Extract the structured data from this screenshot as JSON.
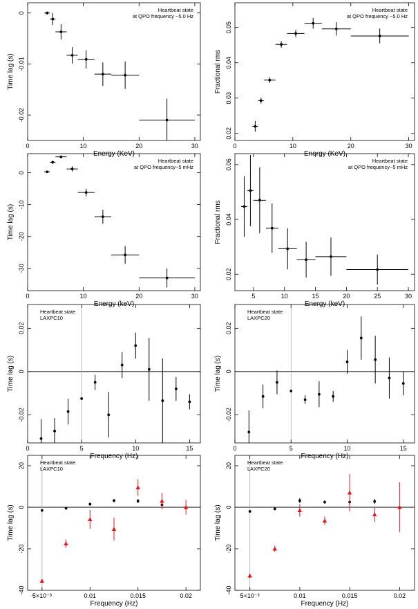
{
  "chart_data": [
    {
      "type": "scatter",
      "title": "",
      "annotation": [
        "Heartbeat state",
        "at QPO frequency ~5.0  Hz"
      ],
      "xlabel": "Energy (KeV)",
      "ylabel": "Time lag (s)",
      "xlim": [
        0,
        31
      ],
      "ylim": [
        -0.025,
        0.002
      ],
      "xticks": [
        0,
        10,
        20,
        30
      ],
      "xticklabels": [
        "0",
        "10",
        "20",
        "30"
      ],
      "yticks": [
        0,
        -0.01,
        -0.02
      ],
      "yticklabels": [
        "0",
        "-0.01",
        "-0.02"
      ],
      "series": [
        {
          "name": "lag",
          "color": "#000000",
          "marker": "dot",
          "x": [
            3.5,
            4.5,
            6.0,
            8.0,
            10.5,
            13.5,
            17.5,
            25.0
          ],
          "y": [
            0.0,
            -0.0012,
            -0.0037,
            -0.0083,
            -0.0091,
            -0.012,
            -0.0122,
            -0.021
          ],
          "xerr": [
            0.5,
            0.5,
            1.0,
            1.0,
            1.5,
            1.5,
            2.5,
            5.0
          ],
          "yerr": [
            0.0003,
            0.0012,
            0.0015,
            0.0016,
            0.0018,
            0.0023,
            0.0027,
            0.0042
          ]
        }
      ]
    },
    {
      "type": "scatter",
      "title": "",
      "annotation": [
        "Heartbeat state",
        "at QPO frequency ~5.0 Hz"
      ],
      "xlabel": "Energy (KeV)",
      "ylabel": "Fractional rms",
      "xlim": [
        0,
        31
      ],
      "ylim": [
        0.018,
        0.057
      ],
      "xticks": [
        0,
        10,
        20,
        30
      ],
      "xticklabels": [
        "0",
        "10",
        "20",
        "30"
      ],
      "yticks": [
        0.02,
        0.03,
        0.04,
        0.05
      ],
      "yticklabels": [
        "0.02",
        "0.03",
        "0.04",
        "0.05"
      ],
      "series": [
        {
          "name": "rms",
          "color": "#000000",
          "marker": "dot",
          "x": [
            3.5,
            4.5,
            6.0,
            8.0,
            10.5,
            13.5,
            17.5,
            25.0
          ],
          "y": [
            0.022,
            0.0293,
            0.0351,
            0.0452,
            0.0483,
            0.0512,
            0.0496,
            0.0476
          ],
          "xerr": [
            0.5,
            0.5,
            1.0,
            1.0,
            1.5,
            1.5,
            2.5,
            5.0
          ],
          "yerr": [
            0.0015,
            0.0008,
            0.0008,
            0.0009,
            0.001,
            0.0015,
            0.0019,
            0.0021
          ]
        }
      ]
    },
    {
      "type": "scatter",
      "title": "",
      "annotation": [
        "Heartbeat state",
        "at QPO frequency~5 mHz"
      ],
      "xlabel": "Energy (keV)",
      "ylabel": "Time lag (s)",
      "xlim": [
        0,
        31
      ],
      "ylim": [
        -37,
        6
      ],
      "xticks": [
        0,
        10,
        20,
        30
      ],
      "xticklabels": [
        "0",
        "10",
        "20",
        "30"
      ],
      "yticks": [
        0,
        -10,
        -20,
        -30
      ],
      "yticklabels": [
        "0",
        "-10",
        "-20",
        "-30"
      ],
      "series": [
        {
          "name": "lag",
          "color": "#000000",
          "marker": "dot",
          "x": [
            3.5,
            4.5,
            6.0,
            8.0,
            10.5,
            13.5,
            17.5,
            25.0
          ],
          "y": [
            0.3,
            3.3,
            5.0,
            1.2,
            -6.2,
            -13.8,
            -25.8,
            -33.0
          ],
          "xerr": [
            0.5,
            0.5,
            1.0,
            1.0,
            1.5,
            1.5,
            2.5,
            5.0
          ],
          "yerr": [
            0.3,
            0.5,
            0.3,
            0.8,
            1.2,
            2.2,
            2.8,
            3.0
          ]
        }
      ]
    },
    {
      "type": "scatter",
      "title": "",
      "annotation": [
        "Heartbeat state",
        "at QPO frequency~5 mHz"
      ],
      "xlabel": "Energy (keV)",
      "ylabel": "Fractional rms",
      "xlim": [
        2,
        31
      ],
      "ylim": [
        0.014,
        0.064
      ],
      "xticks": [
        5,
        10,
        15,
        20,
        25,
        30
      ],
      "xticklabels": [
        "5",
        "10",
        "15",
        "20",
        "25",
        "30"
      ],
      "yticks": [
        0.02,
        0.04,
        0.06
      ],
      "yticklabels": [
        "0.02",
        "0.04",
        "0.06"
      ],
      "series": [
        {
          "name": "rms",
          "color": "#000000",
          "marker": "dot",
          "x": [
            3.5,
            4.5,
            6.0,
            8.0,
            10.5,
            13.5,
            17.5,
            25.0
          ],
          "y": [
            0.0447,
            0.0505,
            0.047,
            0.0368,
            0.0293,
            0.0253,
            0.0264,
            0.0217
          ],
          "xerr": [
            0.5,
            0.5,
            1.0,
            1.0,
            1.5,
            1.5,
            2.5,
            5.0
          ],
          "yerr": [
            0.011,
            0.013,
            0.012,
            0.009,
            0.0075,
            0.0065,
            0.007,
            0.0055
          ]
        }
      ]
    },
    {
      "type": "scatter",
      "title": "",
      "annotation": [
        "Heartbeat state",
        "LAXPC10"
      ],
      "xlabel": "Frequency (Hz)",
      "ylabel": "Time lag (s)",
      "xlim": [
        0,
        16
      ],
      "ylim": [
        -0.033,
        0.031
      ],
      "xticks": [
        0,
        5,
        10,
        15
      ],
      "xticklabels": [
        "0",
        "5",
        "10",
        "15"
      ],
      "yticks": [
        0.02,
        0,
        -0.02
      ],
      "yticklabels": [
        "0.02",
        "0",
        "-0.02"
      ],
      "zero_line": true,
      "vline_x": 5,
      "series": [
        {
          "name": "lag",
          "color": "#000000",
          "marker": "dot",
          "x": [
            1.25,
            2.5,
            3.75,
            5.0,
            6.25,
            7.5,
            8.75,
            10.0,
            11.25,
            12.5,
            13.75,
            15.0
          ],
          "y": [
            -0.031,
            -0.0275,
            -0.0185,
            -0.0125,
            -0.005,
            -0.02,
            0.003,
            0.012,
            0.001,
            -0.0135,
            -0.008,
            -0.014
          ],
          "xerr": [
            0,
            0,
            0,
            0,
            0,
            0,
            0,
            0,
            0,
            0,
            0,
            0
          ],
          "yerr": [
            0.009,
            0.006,
            0.006,
            0.0004,
            0.0035,
            0.0105,
            0.006,
            0.006,
            0.0145,
            0.0195,
            0.0055,
            0.0035
          ]
        }
      ]
    },
    {
      "type": "scatter",
      "title": "",
      "annotation": [
        "Heartbeat state",
        "LAXPC20"
      ],
      "xlabel": "Frequency (Hz)",
      "ylabel": "Time lag (s)",
      "xlim": [
        0,
        16
      ],
      "ylim": [
        -0.033,
        0.031
      ],
      "xticks": [
        0,
        5,
        10,
        15
      ],
      "xticklabels": [
        "0",
        "5",
        "10",
        "15"
      ],
      "yticks": [
        0.02,
        0,
        -0.02
      ],
      "yticklabels": [
        "0.02",
        "0",
        "-0.02"
      ],
      "zero_line": true,
      "vline_x": 5,
      "series": [
        {
          "name": "lag",
          "color": "#000000",
          "marker": "dot",
          "x": [
            1.25,
            2.5,
            3.75,
            5.0,
            6.25,
            7.5,
            8.75,
            10.0,
            11.25,
            12.5,
            13.75,
            15.0
          ],
          "y": [
            -0.028,
            -0.0115,
            -0.005,
            -0.009,
            -0.013,
            -0.0105,
            -0.0115,
            0.0045,
            0.0155,
            0.0055,
            -0.003,
            -0.0055
          ],
          "xerr": [
            0,
            0,
            0,
            0,
            0,
            0,
            0,
            0,
            0,
            0,
            0,
            0
          ],
          "yerr": [
            0.01,
            0.0055,
            0.0055,
            0.0004,
            0.002,
            0.006,
            0.0025,
            0.0055,
            0.01,
            0.011,
            0.0095,
            0.0055
          ]
        }
      ]
    },
    {
      "type": "scatter",
      "title": "",
      "annotation": [
        "Heartbeat state",
        "LAXPC10"
      ],
      "xlabel": "Frequency (Hz)",
      "ylabel": "Time lag (s)",
      "xlim": [
        0.0035,
        0.0215
      ],
      "ylim": [
        -40,
        25
      ],
      "xticks": [
        0.005,
        0.01,
        0.015,
        0.02
      ],
      "xticklabels": [
        "5×10⁻³",
        "0.01",
        "0.015",
        "0.02"
      ],
      "yticks": [
        20,
        0,
        -20,
        -40
      ],
      "yticklabels": [
        "20",
        "0",
        "-20",
        "-40"
      ],
      "zero_line": true,
      "vline_x": 0.005,
      "series": [
        {
          "name": "black",
          "color": "#000000",
          "marker": "dot",
          "x": [
            0.005,
            0.0075,
            0.01,
            0.0125,
            0.015,
            0.0175
          ],
          "y": [
            -1.5,
            -0.5,
            1.5,
            3.2,
            3.0,
            1.2
          ],
          "xerr": [
            0,
            0,
            0,
            0,
            0,
            0
          ],
          "yerr": [
            0.6,
            0.6,
            0.8,
            0.8,
            1.0,
            1.0
          ]
        },
        {
          "name": "red",
          "color": "#e8141b",
          "marker": "triangle",
          "x": [
            0.005,
            0.0075,
            0.01,
            0.0125,
            0.015,
            0.0175,
            0.02
          ],
          "y": [
            -35.5,
            -17.5,
            -5.8,
            -10.5,
            9.5,
            3.0,
            0.0
          ],
          "xerr": [
            0,
            0,
            0,
            0,
            0,
            0,
            0
          ],
          "yerr": [
            1.0,
            2.0,
            4.5,
            5.5,
            4.0,
            4.0,
            3.5
          ]
        }
      ]
    },
    {
      "type": "scatter",
      "title": "",
      "annotation": [
        "Heartbeat state",
        "LAXPC20"
      ],
      "xlabel": "Frequency (Hz)",
      "ylabel": "Time lag (s)",
      "xlim": [
        0.0035,
        0.0215
      ],
      "ylim": [
        -40,
        25
      ],
      "xticks": [
        0.005,
        0.01,
        0.015,
        0.02
      ],
      "xticklabels": [
        "5×10⁻³",
        "0.01",
        "0.015",
        "0.02"
      ],
      "yticks": [
        20,
        0,
        -20,
        -40
      ],
      "yticklabels": [
        "20",
        "0",
        "-20",
        "-40"
      ],
      "zero_line": true,
      "vline_x": 0.005,
      "series": [
        {
          "name": "black",
          "color": "#000000",
          "marker": "dot",
          "x": [
            0.005,
            0.0075,
            0.01,
            0.0125,
            0.015,
            0.0175
          ],
          "y": [
            -2.0,
            -0.8,
            3.2,
            2.5,
            2.5,
            2.8
          ],
          "xerr": [
            0,
            0,
            0,
            0,
            0,
            0
          ],
          "yerr": [
            0.6,
            0.6,
            1.2,
            0.8,
            1.2,
            1.2
          ]
        },
        {
          "name": "red",
          "color": "#e8141b",
          "marker": "triangle",
          "x": [
            0.005,
            0.0075,
            0.01,
            0.0125,
            0.015,
            0.0175,
            0.02
          ],
          "y": [
            -33.0,
            -20.0,
            -1.5,
            -6.5,
            7.0,
            -3.5,
            0.0
          ],
          "xerr": [
            0,
            0,
            0,
            0,
            0,
            0,
            0
          ],
          "yerr": [
            1.0,
            1.5,
            3.0,
            2.0,
            9.0,
            3.5,
            12.0
          ]
        }
      ]
    }
  ]
}
